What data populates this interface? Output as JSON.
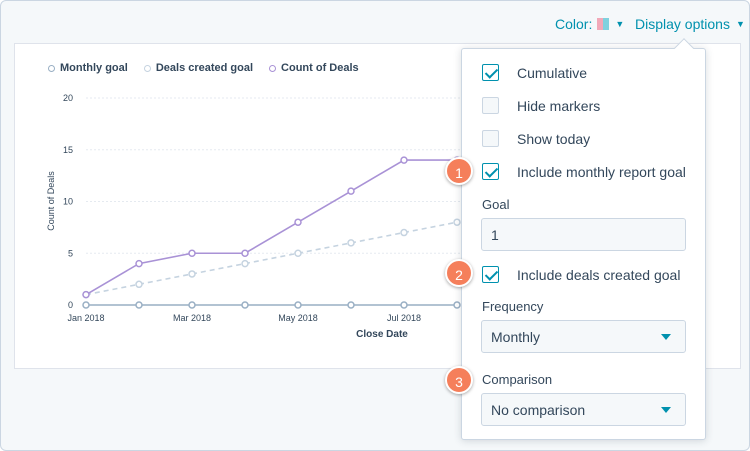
{
  "toolbar": {
    "color_label": "Color:",
    "display_label": "Display options"
  },
  "legend": [
    {
      "label": "Monthly goal",
      "color": "#99afc4"
    },
    {
      "label": "Deals created goal",
      "color": "#c5d3e0"
    },
    {
      "label": "Count of Deals",
      "color": "#a992d6"
    }
  ],
  "chart_data": {
    "type": "line",
    "ylabel": "Count of Deals",
    "xlabel": "Close Date",
    "ylim": [
      0,
      20
    ],
    "yticks": [
      0,
      5,
      10,
      15,
      20
    ],
    "x_tick_labels": [
      "Jan 2018",
      "Mar 2018",
      "May 2018",
      "Jul 2018"
    ],
    "grid": true,
    "series": [
      {
        "name": "Count of Deals",
        "color": "#a992d6",
        "style": "solid",
        "values": [
          1,
          4,
          5,
          5,
          8,
          11,
          14,
          14
        ]
      },
      {
        "name": "Deals created goal",
        "color": "#c5d3e0",
        "style": "dashed",
        "values": [
          1,
          2,
          3,
          4,
          5,
          6,
          7,
          8
        ]
      },
      {
        "name": "Monthly goal",
        "color": "#99afc4",
        "style": "solid",
        "values": [
          0,
          0,
          0,
          0,
          0,
          0,
          0,
          0
        ]
      }
    ]
  },
  "panel": {
    "options": [
      {
        "label": "Cumulative",
        "checked": true
      },
      {
        "label": "Hide markers",
        "checked": false
      },
      {
        "label": "Show today",
        "checked": false
      },
      {
        "label": "Include monthly report goal",
        "checked": true
      }
    ],
    "goal_label": "Goal",
    "goal_value": "1",
    "deals_goal": {
      "label": "Include deals created goal",
      "checked": true
    },
    "frequency_label": "Frequency",
    "frequency_value": "Monthly",
    "comparison_label": "Comparison",
    "comparison_value": "No comparison"
  },
  "callouts": [
    "1",
    "2",
    "3"
  ],
  "colors": {
    "accent": "#0091ae",
    "callout": "#f57f5b"
  }
}
